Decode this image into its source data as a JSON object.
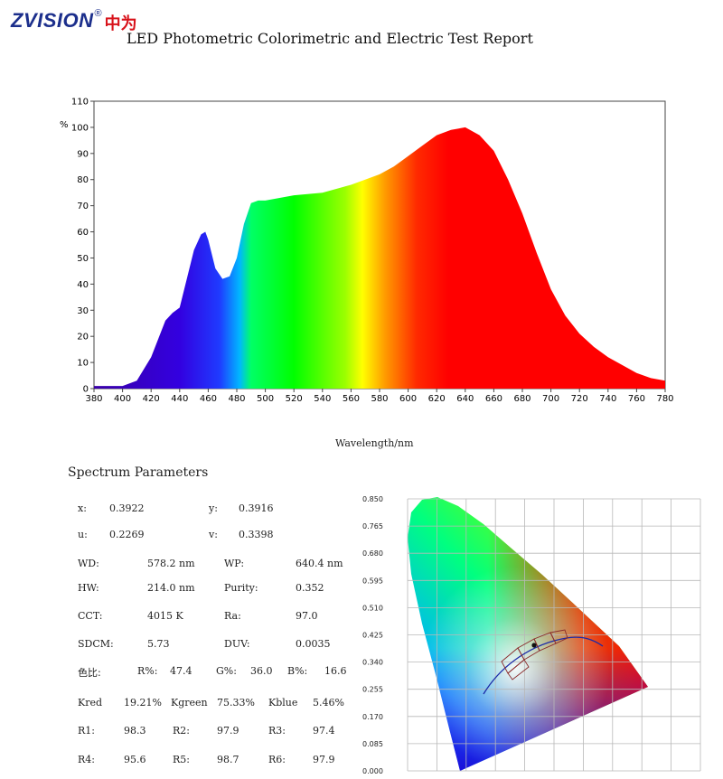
{
  "logo": {
    "brand_en": "ZVISION",
    "registered": "®",
    "brand_cn": "中为"
  },
  "report_title": "LED Photometric Colorimetric and Electric Test Report",
  "chart_data": [
    {
      "type": "area",
      "title": "",
      "xlabel": "Wavelength/nm",
      "ylabel": "%",
      "xlim": [
        380,
        780
      ],
      "ylim": [
        0,
        110
      ],
      "x_ticks": [
        380,
        400,
        420,
        440,
        460,
        480,
        500,
        520,
        540,
        560,
        580,
        600,
        620,
        640,
        660,
        680,
        700,
        720,
        740,
        760,
        780
      ],
      "y_ticks": [
        0,
        10,
        20,
        30,
        40,
        50,
        60,
        70,
        80,
        90,
        100,
        110
      ],
      "fill": "visible-spectrum-gradient",
      "series": [
        {
          "x": [
            380,
            400,
            410,
            420,
            430,
            435,
            440,
            445,
            450,
            455,
            458,
            460,
            465,
            470,
            475,
            480,
            485,
            490,
            495,
            500,
            520,
            540,
            560,
            580,
            590,
            600,
            610,
            620,
            630,
            640,
            650,
            660,
            670,
            680,
            690,
            700,
            710,
            720,
            730,
            740,
            750,
            760,
            770,
            780
          ],
          "y": [
            1,
            1,
            3,
            12,
            26,
            29,
            31,
            42,
            53,
            59,
            60,
            57,
            46,
            42,
            43,
            50,
            63,
            71,
            72,
            72,
            74,
            75,
            78,
            82,
            85,
            89,
            93,
            97,
            99,
            100,
            97,
            91,
            80,
            67,
            52,
            38,
            28,
            21,
            16,
            12,
            9,
            6,
            4,
            3
          ]
        }
      ]
    },
    {
      "type": "scatter",
      "title": "",
      "subtype": "cie-1931-chromaticity",
      "xlim": [
        0,
        0.8
      ],
      "ylim": [
        0,
        0.85
      ],
      "y_ticks": [
        "0.850",
        "0.765",
        "0.680",
        "0.595",
        "0.510",
        "0.425",
        "0.340",
        "0.255",
        "0.170",
        "0.085",
        "0.000"
      ],
      "points": [
        {
          "x": 0.3922,
          "y": 0.3916
        }
      ],
      "planckian_locus": true,
      "tolerance_quadrangles": true
    }
  ],
  "params": {
    "section_title": "Spectrum Parameters",
    "x_label": "x:",
    "x_value": "0.3922",
    "y_label": "y:",
    "y_value": "0.3916",
    "u_label": "u:",
    "u_value": "0.2269",
    "v_label": "v:",
    "v_value": "0.3398",
    "wd_label": "WD:",
    "wd_value": "578.2 nm",
    "wp_label": "WP:",
    "wp_value": "640.4 nm",
    "hw_label": "HW:",
    "hw_value": "214.0 nm",
    "purity_label": "Purity:",
    "purity_value": "0.352",
    "cct_label": "CCT:",
    "cct_value": "4015 K",
    "ra_label": "Ra:",
    "ra_value": "97.0",
    "sdcm_label": "SDCM:",
    "sdcm_value": "5.73",
    "duv_label": "DUV:",
    "duv_value": "0.0035",
    "ratio_label": "色比:",
    "r_pct_label": "R%:",
    "r_pct_value": "47.4",
    "g_pct_label": "G%:",
    "g_pct_value": "36.0",
    "b_pct_label": "B%:",
    "b_pct_value": "16.6",
    "kred_label": "Kred",
    "kred_value": "19.21%",
    "kgreen_label": "Kgreen",
    "kgreen_value": "75.33%",
    "kblue_label": "Kblue",
    "kblue_value": "5.46%",
    "r1_label": "R1:",
    "r1_value": "98.3",
    "r2_label": "R2:",
    "r2_value": "97.9",
    "r3_label": "R3:",
    "r3_value": "97.4",
    "r4_label": "R4:",
    "r4_value": "95.6",
    "r5_label": "R5:",
    "r5_value": "98.7",
    "r6_label": "R6:",
    "r6_value": "97.9"
  }
}
